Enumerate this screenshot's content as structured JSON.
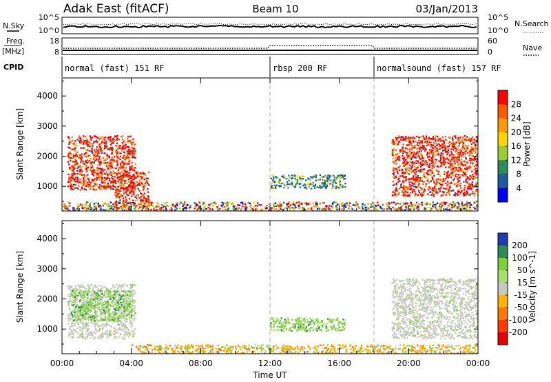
{
  "header": {
    "left": "Adak East (fitACF)",
    "center": "Beam 10",
    "right": "03/Jan/2013"
  },
  "top_panels": {
    "nsky_label": "N.Sky",
    "nsky_ticks": [
      "10^5",
      "10^0"
    ],
    "nsearch_label": "N.Search",
    "nsearch_ticks": [
      "10^5",
      "10^0"
    ],
    "freq_label": "Freq.",
    "freq_unit": "[MHz]",
    "freq_ticks": [
      "18",
      "8"
    ],
    "nave_label": "Nave",
    "nave_ticks": [
      "60",
      "0"
    ],
    "cpid_label": "CPID"
  },
  "cpid_segments": [
    {
      "label": "normal (fast) 151 RF",
      "start_hour": 0,
      "end_hour": 12
    },
    {
      "label": "rbsp 200 RF",
      "start_hour": 12,
      "end_hour": 18
    },
    {
      "label": "normalsound (fast) 157 RF",
      "start_hour": 18,
      "end_hour": 24
    }
  ],
  "time_axis": {
    "title": "Time UT",
    "tick_labels": [
      "00:00",
      "04:00",
      "08:00",
      "12:00",
      "16:00",
      "20:00",
      "00:00"
    ],
    "tick_hours": [
      0,
      4,
      8,
      12,
      16,
      20,
      24
    ]
  },
  "chart_data": [
    {
      "type": "heatmap",
      "name": "power",
      "ylabel": "Slant Range [km]",
      "yticks": [
        1000,
        2000,
        3000,
        4000
      ],
      "ylim": [
        180,
        4600
      ],
      "xlim": [
        0,
        24
      ],
      "colorbar": {
        "title": "Power [dB]",
        "tick_labels": [
          "28",
          "24",
          "20",
          "16",
          "12",
          "8",
          "4"
        ],
        "colors": [
          "#ff0000",
          "#ff5a00",
          "#ff9b00",
          "#ffd200",
          "#9acd32",
          "#2e8b57",
          "#1e5aa0",
          "#0000ff"
        ]
      },
      "regions": [
        {
          "feature": "F-region scatter",
          "t_start": 0.3,
          "t_end": 4.2,
          "range_start": 900,
          "range_end": 2700,
          "level": "high"
        },
        {
          "feature": "descending band",
          "t_start": 3.0,
          "t_end": 5.0,
          "range_start": 350,
          "range_end": 1500,
          "level": "high"
        },
        {
          "feature": "near-range scatter",
          "t_start": 0.0,
          "t_end": 24.0,
          "range_start": 200,
          "range_end": 500,
          "level": "mixed"
        },
        {
          "feature": "mid-day patch",
          "t_start": 12.0,
          "t_end": 16.3,
          "range_start": 950,
          "range_end": 1400,
          "level": "low"
        },
        {
          "feature": "F-region scatter",
          "t_start": 19.0,
          "t_end": 24.0,
          "range_start": 700,
          "range_end": 2700,
          "level": "high"
        }
      ]
    },
    {
      "type": "heatmap",
      "name": "velocity",
      "ylabel": "Slant Range [km]",
      "yticks": [
        1000,
        2000,
        3000,
        4000
      ],
      "ylim": [
        180,
        4600
      ],
      "xlim": [
        0,
        24
      ],
      "colorbar": {
        "title": "Velocity [m s^-1]",
        "tick_labels": [
          "200",
          "100",
          "50",
          "15",
          "-15",
          "-50",
          "-100",
          "-200"
        ],
        "colors": [
          "#1e3cb4",
          "#2e8b57",
          "#7cd03c",
          "#a8e070",
          "#c8c8c0",
          "#ffb400",
          "#ff7800",
          "#ff3c00",
          "#e60000"
        ]
      },
      "regions": [
        {
          "feature": "ground scatter",
          "t_start": 0.3,
          "t_end": 4.2,
          "range_start": 700,
          "range_end": 2500,
          "level": "near zero"
        },
        {
          "feature": "positive velocities",
          "t_start": 0.5,
          "t_end": 4.0,
          "range_start": 1300,
          "range_end": 2300,
          "level": "positive"
        },
        {
          "feature": "near-range scatter",
          "t_start": 4.0,
          "t_end": 24.0,
          "range_start": 200,
          "range_end": 500,
          "level": "negative"
        },
        {
          "feature": "mid-day patch",
          "t_start": 12.0,
          "t_end": 16.3,
          "range_start": 950,
          "range_end": 1400,
          "level": "positive"
        },
        {
          "feature": "ground scatter",
          "t_start": 19.0,
          "t_end": 24.0,
          "range_start": 700,
          "range_end": 2700,
          "level": "near zero"
        }
      ]
    }
  ]
}
